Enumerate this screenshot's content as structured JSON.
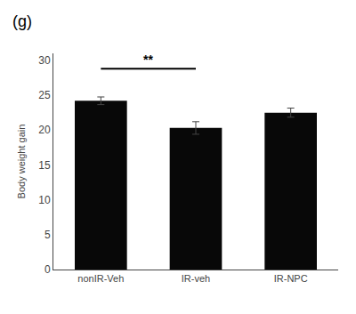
{
  "chart_data": {
    "type": "bar",
    "categories": [
      "nonIR-Veh",
      "IR-veh",
      "IR-NPC"
    ],
    "values": [
      24.2,
      20.3,
      22.5
    ],
    "errors": [
      0.55,
      0.9,
      0.65
    ],
    "color": "#080808",
    "ylabel": "Body weight gain",
    "ylim": [
      0,
      31
    ],
    "yticks": [
      0,
      5,
      10,
      15,
      20,
      25,
      30
    ],
    "grid": false,
    "annotations": [
      {
        "text": "(g)"
      },
      {
        "text": "**",
        "from": "nonIR-Veh",
        "to": "IR-veh",
        "y": 28.8
      }
    ]
  }
}
